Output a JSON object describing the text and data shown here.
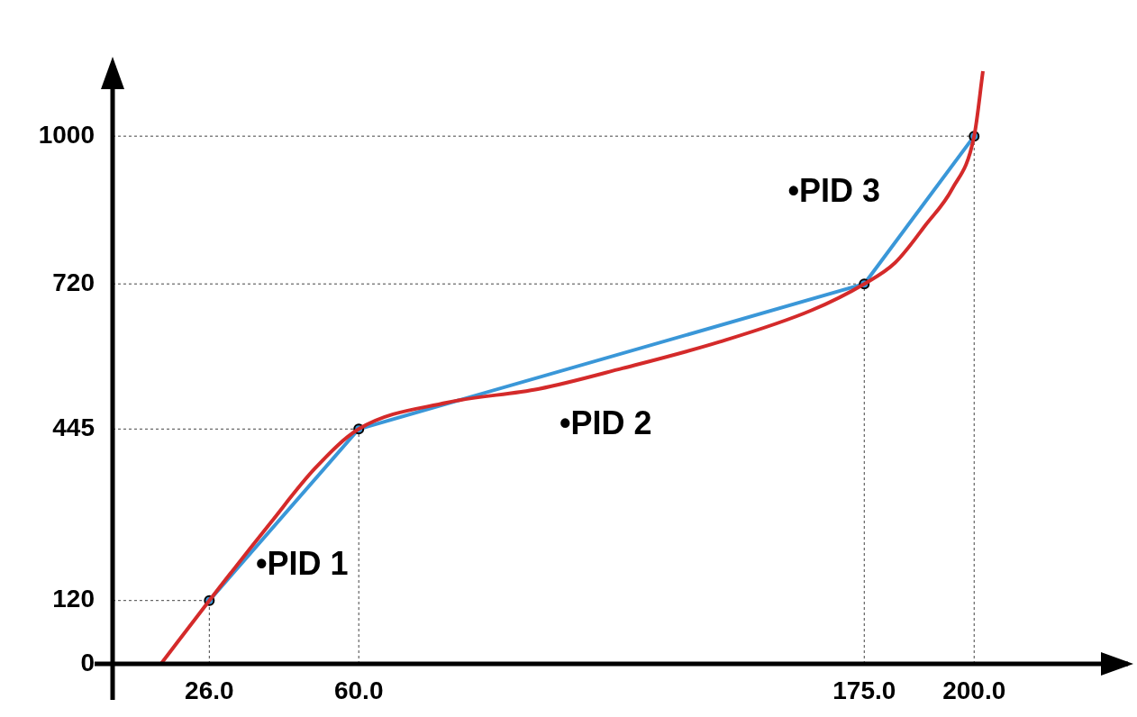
{
  "chart_data": {
    "type": "line",
    "xlim": [
      4,
      235
    ],
    "ylim": [
      0,
      1130
    ],
    "xticks": [
      {
        "value": 26,
        "label": "26.0"
      },
      {
        "value": 60,
        "label": "60.0"
      },
      {
        "value": 175,
        "label": "175.0"
      },
      {
        "value": 200,
        "label": "200.0"
      }
    ],
    "yticks": [
      0,
      120,
      445,
      720,
      1000
    ],
    "legend": false,
    "ref_lines": [
      {
        "axis": "y",
        "value": 120,
        "line_style": "dotted"
      },
      {
        "axis": "y",
        "value": 445,
        "line_style": "dotted"
      },
      {
        "axis": "y",
        "value": 720,
        "line_style": "dotted"
      },
      {
        "axis": "y",
        "value": 1000,
        "line_style": "dotted"
      },
      {
        "axis": "x",
        "value": 26,
        "line_style": "dotted"
      },
      {
        "axis": "x",
        "value": 60,
        "line_style": "dotted"
      },
      {
        "axis": "x",
        "value": 175,
        "line_style": "dotted"
      },
      {
        "axis": "x",
        "value": 200,
        "line_style": "dotted"
      }
    ],
    "series": [
      {
        "color": "#d42a2a",
        "marker": "none",
        "x": [
          15,
          26,
          40,
          50,
          60,
          80,
          101,
          120,
          142,
          163,
          175,
          182,
          189,
          195,
          200,
          202
        ],
        "values": [
          0,
          120,
          268,
          370,
          445,
          495,
          521,
          560,
          610,
          670,
          720,
          760,
          832,
          900,
          1000,
          1123
        ]
      },
      {
        "color": "#3a97d8",
        "marker": "circle",
        "x": [
          26,
          60,
          175,
          200
        ],
        "values": [
          120,
          445,
          720,
          1000
        ]
      }
    ],
    "annotations": [
      "•PID 1",
      "•PID 2",
      "•PID 3"
    ]
  }
}
